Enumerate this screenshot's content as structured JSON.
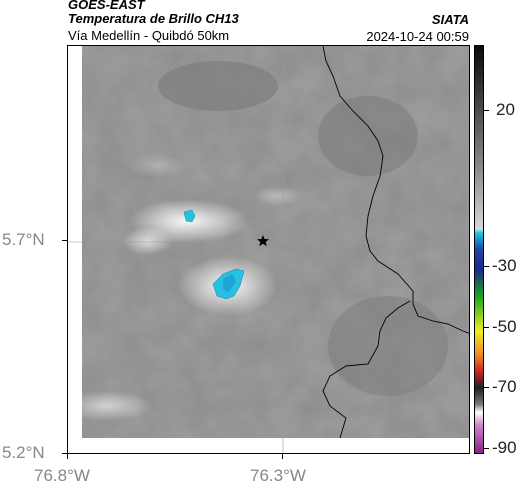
{
  "header": {
    "satellite": "GOES-EAST",
    "product": "Temperatura de Brillo CH13",
    "subtitle": "Vía Medellín - Quibdó 50km",
    "agency": "SIATA",
    "datetime": "2024-10-24 00:59"
  },
  "map": {
    "lat_ticks": [
      "5.7°N",
      "5.2°N"
    ],
    "lon_ticks": [
      "76.8°W",
      "76.3°W"
    ],
    "marker_icon": "star-icon",
    "gridlines": true
  },
  "colorbar": {
    "labels": [
      "20",
      "-30",
      "-50",
      "-70",
      "-90"
    ],
    "colors": {
      "warm_gray": "#8a8a8a",
      "cold_cyan": "#18b8d8",
      "blue": "#1a2a9a",
      "green": "#22bb22",
      "yellow": "#dddd22",
      "red": "#cc2222",
      "purple": "#aa44aa"
    }
  }
}
